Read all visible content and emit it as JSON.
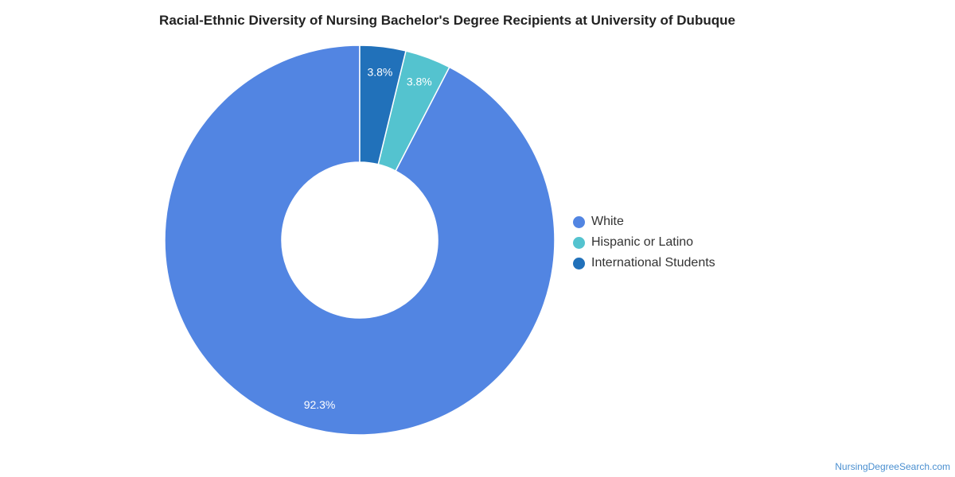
{
  "chart_data": {
    "type": "pie",
    "title": "Racial-Ethnic Diversity of Nursing Bachelor's Degree Recipients at University of Dubuque",
    "donut": true,
    "slices": [
      {
        "label": "White",
        "value": 92.3,
        "display": "92.3%",
        "color": "#5285e2"
      },
      {
        "label": "Hispanic or Latino",
        "value": 3.8,
        "display": "3.8%",
        "color": "#54c3cf"
      },
      {
        "label": "International Students",
        "value": 3.8,
        "display": "3.8%",
        "color": "#2171ba"
      }
    ],
    "legend_position": "right"
  },
  "footer": {
    "watermark": "NursingDegreeSearch.com"
  }
}
